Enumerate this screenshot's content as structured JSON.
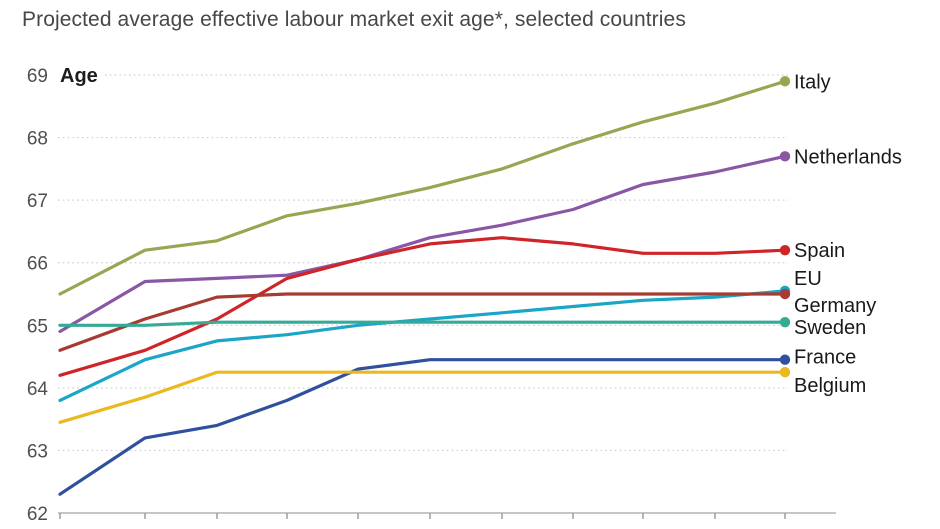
{
  "title": "Projected average effective labour market exit age*, selected countries",
  "chart_data": {
    "type": "line",
    "title": "Projected average effective labour market exit age*, selected countries",
    "ylabel": "Age",
    "ylim": [
      62,
      69
    ],
    "yticks": [
      62,
      63,
      64,
      65,
      66,
      67,
      68,
      69
    ],
    "grid": "dotted-horizontal",
    "legend_position": "right-of-line-ends",
    "x_axis": {
      "labels_visible": false,
      "tick_count": 11
    },
    "series": [
      {
        "name": "Italy",
        "color": "#9aa551",
        "values": [
          65.5,
          66.2,
          66.35,
          66.75,
          66.95,
          67.2,
          67.5,
          67.9,
          68.25,
          68.55,
          68.9
        ]
      },
      {
        "name": "Netherlands",
        "color": "#8a57a5",
        "values": [
          64.9,
          65.7,
          65.75,
          65.8,
          66.05,
          66.4,
          66.6,
          66.85,
          67.25,
          67.45,
          67.7
        ]
      },
      {
        "name": "Spain",
        "color": "#d02428",
        "values": [
          64.2,
          64.6,
          65.1,
          65.75,
          66.05,
          66.3,
          66.4,
          66.3,
          66.15,
          66.15,
          66.2
        ]
      },
      {
        "name": "EU",
        "color": "#1ba5c7",
        "values": [
          63.8,
          64.45,
          64.75,
          64.85,
          65.0,
          65.1,
          65.2,
          65.3,
          65.4,
          65.45,
          65.55
        ]
      },
      {
        "name": "Germany",
        "color": "#a83b31",
        "values": [
          64.6,
          65.1,
          65.45,
          65.5,
          65.5,
          65.5,
          65.5,
          65.5,
          65.5,
          65.5,
          65.5
        ]
      },
      {
        "name": "Sweden",
        "color": "#35ab97",
        "values": [
          65.0,
          65.0,
          65.05,
          65.05,
          65.05,
          65.05,
          65.05,
          65.05,
          65.05,
          65.05,
          65.05
        ]
      },
      {
        "name": "France",
        "color": "#30509e",
        "values": [
          62.3,
          63.2,
          63.4,
          63.8,
          64.3,
          64.45,
          64.45,
          64.45,
          64.45,
          64.45,
          64.45
        ]
      },
      {
        "name": "Belgium",
        "color": "#ecb81f",
        "values": [
          63.45,
          63.85,
          64.25,
          64.25,
          64.25,
          64.25,
          64.25,
          64.25,
          64.25,
          64.25,
          64.25
        ]
      }
    ]
  }
}
